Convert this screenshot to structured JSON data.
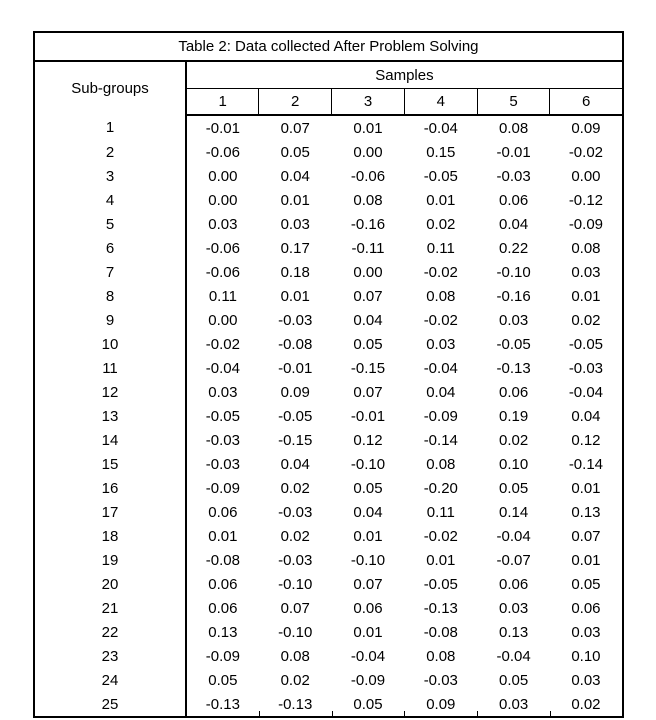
{
  "page": {
    "background": "#ffffff"
  },
  "table": {
    "title": "Table 2: Data collected After Problem Solving",
    "subgroups_header": "Sub-groups",
    "samples_header": "Samples",
    "sample_columns": [
      "1",
      "2",
      "3",
      "4",
      "5",
      "6"
    ],
    "colors": {
      "border": "#000000",
      "text": "#000000",
      "background": "#ffffff"
    },
    "rows": [
      {
        "subgroup": "1",
        "values": [
          "-0.01",
          "0.07",
          "0.01",
          "-0.04",
          "0.08",
          "0.09"
        ]
      },
      {
        "subgroup": "2",
        "values": [
          "-0.06",
          "0.05",
          "0.00",
          "0.15",
          "-0.01",
          "-0.02"
        ]
      },
      {
        "subgroup": "3",
        "values": [
          "0.00",
          "0.04",
          "-0.06",
          "-0.05",
          "-0.03",
          "0.00"
        ]
      },
      {
        "subgroup": "4",
        "values": [
          "0.00",
          "0.01",
          "0.08",
          "0.01",
          "0.06",
          "-0.12"
        ]
      },
      {
        "subgroup": "5",
        "values": [
          "0.03",
          "0.03",
          "-0.16",
          "0.02",
          "0.04",
          "-0.09"
        ]
      },
      {
        "subgroup": "6",
        "values": [
          "-0.06",
          "0.17",
          "-0.11",
          "0.11",
          "0.22",
          "0.08"
        ]
      },
      {
        "subgroup": "7",
        "values": [
          "-0.06",
          "0.18",
          "0.00",
          "-0.02",
          "-0.10",
          "0.03"
        ]
      },
      {
        "subgroup": "8",
        "values": [
          "0.11",
          "0.01",
          "0.07",
          "0.08",
          "-0.16",
          "0.01"
        ]
      },
      {
        "subgroup": "9",
        "values": [
          "0.00",
          "-0.03",
          "0.04",
          "-0.02",
          "0.03",
          "0.02"
        ]
      },
      {
        "subgroup": "10",
        "values": [
          "-0.02",
          "-0.08",
          "0.05",
          "0.03",
          "-0.05",
          "-0.05"
        ]
      },
      {
        "subgroup": "11",
        "values": [
          "-0.04",
          "-0.01",
          "-0.15",
          "-0.04",
          "-0.13",
          "-0.03"
        ]
      },
      {
        "subgroup": "12",
        "values": [
          "0.03",
          "0.09",
          "0.07",
          "0.04",
          "0.06",
          "-0.04"
        ]
      },
      {
        "subgroup": "13",
        "values": [
          "-0.05",
          "-0.05",
          "-0.01",
          "-0.09",
          "0.19",
          "0.04"
        ]
      },
      {
        "subgroup": "14",
        "values": [
          "-0.03",
          "-0.15",
          "0.12",
          "-0.14",
          "0.02",
          "0.12"
        ]
      },
      {
        "subgroup": "15",
        "values": [
          "-0.03",
          "0.04",
          "-0.10",
          "0.08",
          "0.10",
          "-0.14"
        ]
      },
      {
        "subgroup": "16",
        "values": [
          "-0.09",
          "0.02",
          "0.05",
          "-0.20",
          "0.05",
          "0.01"
        ]
      },
      {
        "subgroup": "17",
        "values": [
          "0.06",
          "-0.03",
          "0.04",
          "0.11",
          "0.14",
          "0.13"
        ]
      },
      {
        "subgroup": "18",
        "values": [
          "0.01",
          "0.02",
          "0.01",
          "-0.02",
          "-0.04",
          "0.07"
        ]
      },
      {
        "subgroup": "19",
        "values": [
          "-0.08",
          "-0.03",
          "-0.10",
          "0.01",
          "-0.07",
          "0.01"
        ]
      },
      {
        "subgroup": "20",
        "values": [
          "0.06",
          "-0.10",
          "0.07",
          "-0.05",
          "0.06",
          "0.05"
        ]
      },
      {
        "subgroup": "21",
        "values": [
          "0.06",
          "0.07",
          "0.06",
          "-0.13",
          "0.03",
          "0.06"
        ]
      },
      {
        "subgroup": "22",
        "values": [
          "0.13",
          "-0.10",
          "0.01",
          "-0.08",
          "0.13",
          "0.03"
        ]
      },
      {
        "subgroup": "23",
        "values": [
          "-0.09",
          "0.08",
          "-0.04",
          "0.08",
          "-0.04",
          "0.10"
        ]
      },
      {
        "subgroup": "24",
        "values": [
          "0.05",
          "0.02",
          "-0.09",
          "-0.03",
          "0.05",
          "0.03"
        ]
      },
      {
        "subgroup": "25",
        "values": [
          "-0.13",
          "-0.13",
          "0.05",
          "0.09",
          "0.03",
          "0.02"
        ]
      }
    ]
  }
}
